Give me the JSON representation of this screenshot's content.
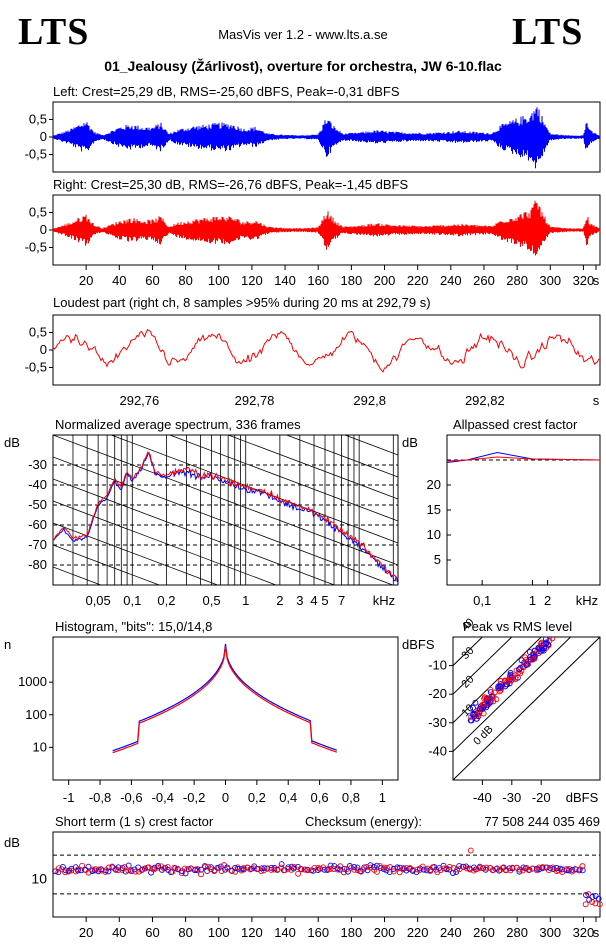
{
  "header": {
    "logo_left": "LTS",
    "logo_right": "LTS",
    "app": "MasVis ver 1.2 - www.lts.a.se",
    "file": "01_Jealousy (Žárlivost), overture for orchestra, JW 6-10.flac"
  },
  "colors": {
    "left": "#0000ff",
    "right": "#ff0000",
    "grid": "#000000"
  },
  "chart_data": [
    {
      "id": "left",
      "type": "line",
      "title": "Left: Crest=25,29 dB, RMS=-25,60 dBFS, Peak=-0,31 dBFS",
      "series": [
        {
          "name": "Left",
          "color": "#0000ff"
        }
      ],
      "yticks": [
        "0,5",
        "0",
        "-0,5"
      ],
      "ylim": [
        -1,
        1
      ],
      "xlim": [
        0,
        330
      ],
      "envelope": [
        [
          0,
          0.04
        ],
        [
          10,
          0.22
        ],
        [
          20,
          0.5
        ],
        [
          25,
          0.15
        ],
        [
          30,
          0.06
        ],
        [
          40,
          0.3
        ],
        [
          47,
          0.38
        ],
        [
          55,
          0.3
        ],
        [
          60,
          0.3
        ],
        [
          65,
          0.42
        ],
        [
          70,
          0.1
        ],
        [
          75,
          0.22
        ],
        [
          85,
          0.33
        ],
        [
          90,
          0.35
        ],
        [
          100,
          0.42
        ],
        [
          108,
          0.4
        ],
        [
          115,
          0.25
        ],
        [
          122,
          0.3
        ],
        [
          130,
          0.1
        ],
        [
          140,
          0.06
        ],
        [
          150,
          0.05
        ],
        [
          160,
          0.08
        ],
        [
          165,
          0.6
        ],
        [
          170,
          0.3
        ],
        [
          175,
          0.1
        ],
        [
          185,
          0.14
        ],
        [
          195,
          0.2
        ],
        [
          210,
          0.14
        ],
        [
          225,
          0.12
        ],
        [
          235,
          0.15
        ],
        [
          245,
          0.18
        ],
        [
          255,
          0.15
        ],
        [
          265,
          0.12
        ],
        [
          270,
          0.35
        ],
        [
          280,
          0.55
        ],
        [
          288,
          0.7
        ],
        [
          292,
          1.0
        ],
        [
          296,
          0.5
        ],
        [
          300,
          0.1
        ],
        [
          310,
          0.05
        ],
        [
          320,
          0.05
        ],
        [
          322,
          0.55
        ],
        [
          324,
          0.2
        ],
        [
          330,
          0.04
        ]
      ]
    },
    {
      "id": "right",
      "type": "line",
      "title": "Right: Crest=25,30 dB, RMS=-26,76 dBFS, Peak=-1,45 dBFS",
      "series": [
        {
          "name": "Right",
          "color": "#ff0000"
        }
      ],
      "yticks": [
        "0,5",
        "0",
        "-0,5"
      ],
      "ylim": [
        -1,
        1
      ],
      "xlim": [
        0,
        330
      ],
      "xticks": [
        "20",
        "40",
        "60",
        "80",
        "100",
        "120",
        "140",
        "160",
        "180",
        "200",
        "220",
        "240",
        "260",
        "280",
        "300",
        "320",
        "s"
      ],
      "envelope": [
        [
          0,
          0.04
        ],
        [
          10,
          0.22
        ],
        [
          20,
          0.48
        ],
        [
          25,
          0.15
        ],
        [
          30,
          0.06
        ],
        [
          40,
          0.28
        ],
        [
          47,
          0.36
        ],
        [
          55,
          0.3
        ],
        [
          60,
          0.3
        ],
        [
          65,
          0.42
        ],
        [
          70,
          0.1
        ],
        [
          75,
          0.22
        ],
        [
          85,
          0.32
        ],
        [
          90,
          0.35
        ],
        [
          100,
          0.42
        ],
        [
          108,
          0.4
        ],
        [
          115,
          0.25
        ],
        [
          122,
          0.3
        ],
        [
          130,
          0.1
        ],
        [
          140,
          0.06
        ],
        [
          150,
          0.05
        ],
        [
          160,
          0.08
        ],
        [
          165,
          0.6
        ],
        [
          170,
          0.3
        ],
        [
          175,
          0.1
        ],
        [
          185,
          0.14
        ],
        [
          195,
          0.2
        ],
        [
          210,
          0.14
        ],
        [
          225,
          0.12
        ],
        [
          235,
          0.15
        ],
        [
          245,
          0.18
        ],
        [
          255,
          0.15
        ],
        [
          265,
          0.12
        ],
        [
          270,
          0.3
        ],
        [
          280,
          0.45
        ],
        [
          288,
          0.6
        ],
        [
          292,
          0.95
        ],
        [
          296,
          0.45
        ],
        [
          300,
          0.1
        ],
        [
          310,
          0.05
        ],
        [
          320,
          0.05
        ],
        [
          322,
          0.5
        ],
        [
          324,
          0.2
        ],
        [
          330,
          0.04
        ]
      ]
    },
    {
      "id": "loudest",
      "type": "line",
      "title": "Loudest part (right ch, 8 samples >95% during 20 ms at 292,79 s)",
      "series": [
        {
          "name": "Right",
          "color": "#ff0000"
        }
      ],
      "yticks": [
        "0,5",
        "0",
        "-0,5"
      ],
      "ylim": [
        -1,
        1
      ],
      "xlim": [
        292.745,
        292.84
      ],
      "xticks": [
        "292,76",
        "292,78",
        "292,8",
        "292,82",
        "s"
      ]
    },
    {
      "id": "spectrum",
      "type": "line",
      "title": "Normalized average spectrum, 336 frames",
      "ylabel": "dB",
      "yticks": [
        "-30",
        "-40",
        "-50",
        "-60",
        "-70",
        "-80"
      ],
      "ylim": [
        -90,
        -15
      ],
      "xlim": [
        0.02,
        22
      ],
      "xticks": [
        "0,05",
        "0,1",
        "0,2",
        "0,5",
        "1",
        "2",
        "3",
        "4",
        "5",
        "7",
        "kHz"
      ],
      "series": [
        {
          "name": "Left",
          "color": "#0000ff"
        },
        {
          "name": "Right",
          "color": "#ff0000"
        }
      ],
      "points_khz_db": [
        [
          0.02,
          -68
        ],
        [
          0.025,
          -62
        ],
        [
          0.03,
          -68
        ],
        [
          0.04,
          -66
        ],
        [
          0.05,
          -50
        ],
        [
          0.06,
          -46
        ],
        [
          0.07,
          -38
        ],
        [
          0.08,
          -42
        ],
        [
          0.09,
          -34
        ],
        [
          0.1,
          -38
        ],
        [
          0.12,
          -32
        ],
        [
          0.14,
          -24
        ],
        [
          0.16,
          -35
        ],
        [
          0.2,
          -36
        ],
        [
          0.25,
          -34
        ],
        [
          0.3,
          -33
        ],
        [
          0.4,
          -36
        ],
        [
          0.5,
          -36
        ],
        [
          0.7,
          -39
        ],
        [
          1,
          -42
        ],
        [
          1.5,
          -44
        ],
        [
          2,
          -48
        ],
        [
          3,
          -52
        ],
        [
          4,
          -54
        ],
        [
          5,
          -58
        ],
        [
          7,
          -64
        ],
        [
          10,
          -70
        ],
        [
          14,
          -78
        ],
        [
          18,
          -84
        ],
        [
          22,
          -88
        ]
      ]
    },
    {
      "id": "crest_allpass",
      "type": "line",
      "title": "Allpassed crest factor",
      "ylabel": "dB",
      "yticks": [
        "20",
        "15",
        "10",
        "5"
      ],
      "ylim": [
        0,
        30
      ],
      "xlim": [
        0.02,
        22
      ],
      "xticks": [
        "0,1",
        "1",
        "2",
        "kHz"
      ],
      "series": [
        {
          "name": "Left",
          "color": "#0000ff",
          "points": [
            [
              0.02,
              24.5
            ],
            [
              0.05,
              25
            ],
            [
              0.2,
              26.5
            ],
            [
              1,
              25.2
            ],
            [
              22,
              25
            ]
          ]
        },
        {
          "name": "Right",
          "color": "#ff0000",
          "points": [
            [
              0.02,
              24.8
            ],
            [
              0.05,
              25
            ],
            [
              0.2,
              25.6
            ],
            [
              1,
              25.2
            ],
            [
              22,
              25
            ]
          ]
        }
      ]
    },
    {
      "id": "histogram",
      "type": "line",
      "title": "Histogram, \"bits\": 15,0/14,8",
      "ylabel": "n",
      "yticks": [
        "1000",
        "100",
        "10"
      ],
      "xlim": [
        -1.1,
        1.1
      ],
      "xticks": [
        "-1",
        "-0,8",
        "-0,6",
        "-0,4",
        "-0,2",
        "0",
        "0,2",
        "0,4",
        "0,6",
        "0,8",
        "1"
      ],
      "series": [
        {
          "name": "Left",
          "color": "#0000ff"
        },
        {
          "name": "Right",
          "color": "#ff0000"
        }
      ]
    },
    {
      "id": "peak_rms",
      "type": "scatter",
      "title": "Peak vs RMS level",
      "ylabel": "dBFS",
      "xlabel": "dBFS",
      "yticks": [
        "-10",
        "-20",
        "-30",
        "-40"
      ],
      "xticks": [
        "-40",
        "-30",
        "-20"
      ],
      "xlim": [
        -50,
        0
      ],
      "ylim": [
        -50,
        0
      ],
      "diag_labels": [
        "40",
        "30",
        "20",
        "10",
        "0 dB"
      ],
      "series": [
        {
          "name": "Left",
          "color": "#0000ff"
        },
        {
          "name": "Right",
          "color": "#ff0000"
        }
      ]
    },
    {
      "id": "shortterm_crest",
      "type": "scatter",
      "title": "Short term (1 s) crest factor",
      "checksum_label": "Checksum (energy):",
      "checksum_value": "77 508 244 035 469",
      "ylabel": "dB",
      "yticks": [
        "10"
      ],
      "xlim": [
        0,
        330
      ],
      "xticks": [
        "20",
        "40",
        "60",
        "80",
        "100",
        "120",
        "140",
        "160",
        "180",
        "200",
        "220",
        "240",
        "260",
        "280",
        "300",
        "320",
        "s"
      ],
      "series": [
        {
          "name": "Left",
          "color": "#0000ff"
        },
        {
          "name": "Right",
          "color": "#ff0000"
        }
      ]
    }
  ]
}
